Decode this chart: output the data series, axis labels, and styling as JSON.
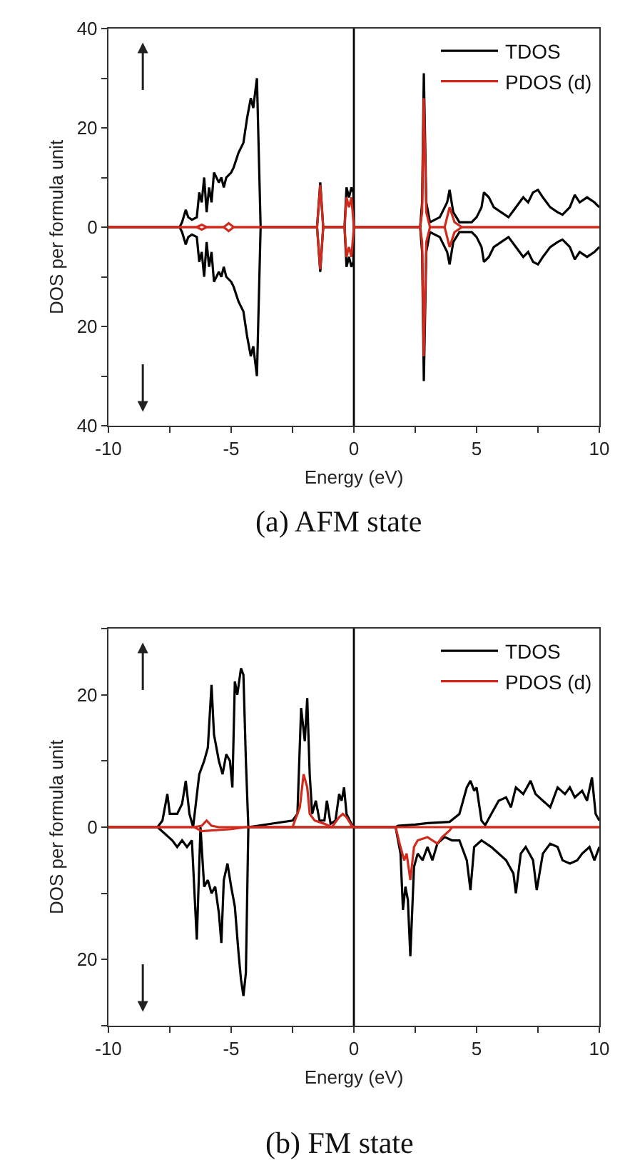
{
  "chart_data": [
    {
      "type": "line",
      "title": "(a) AFM state",
      "xlabel": "Energy (eV)",
      "ylabel": "DOS per formula unit",
      "xlim": [
        -10,
        10
      ],
      "xticks": [
        -10,
        {
          "value": -7.5,
          "label": null
        },
        -5,
        {
          "value": -2.5,
          "label": null
        },
        0,
        {
          "value": 2.5,
          "label": null
        },
        5,
        {
          "value": 7.5,
          "label": null
        },
        10
      ],
      "ylim": [
        -40,
        40
      ],
      "yticks": [
        {
          "value": -40,
          "label": "40"
        },
        {
          "value": -30,
          "label": null
        },
        {
          "value": -20,
          "label": "20"
        },
        {
          "value": -10,
          "label": null
        },
        0,
        {
          "value": 10,
          "label": null
        },
        20,
        {
          "value": 30,
          "label": null
        },
        40
      ],
      "legend": "top right",
      "ref_lines": [
        {
          "axis": "x",
          "value": 0,
          "color": "#000000"
        }
      ],
      "series": [
        {
          "name": "TDOS",
          "color": "#000000",
          "x": [
            -10,
            -7.1,
            -7.0,
            -6.85,
            -6.75,
            -6.6,
            -6.4,
            -6.3,
            -6.2,
            -6.1,
            -6.0,
            -5.9,
            -5.8,
            -5.7,
            -5.5,
            -5.4,
            -5.3,
            -5.2,
            -5.0,
            -4.9,
            -4.7,
            -4.5,
            -4.35,
            -4.2,
            -4.1,
            -3.95,
            -3.85,
            -3.8,
            -1.5,
            -1.37,
            -1.25,
            -0.38,
            -0.3,
            -0.2,
            -0.1,
            -0.02,
            0,
            2.7,
            2.78,
            2.85,
            2.95,
            3.1,
            3.5,
            3.8,
            3.9,
            4.05,
            4.3,
            4.8,
            5.0,
            5.2,
            5.3,
            5.5,
            5.7,
            6.0,
            6.3,
            6.6,
            6.9,
            7.1,
            7.3,
            7.5,
            7.7,
            8.0,
            8.3,
            8.5,
            8.8,
            9.0,
            9.2,
            9.5,
            9.8,
            10
          ],
          "values": [
            0,
            0,
            1,
            3.5,
            2,
            1.5,
            2,
            7,
            5,
            10,
            3,
            8,
            5,
            11,
            9,
            10,
            8,
            10,
            11,
            12,
            15,
            17,
            22,
            26,
            24,
            30,
            10,
            0,
            0,
            9,
            0,
            0,
            8,
            6,
            8,
            7,
            0,
            0,
            5,
            31,
            5,
            1,
            2,
            5,
            7.5,
            3,
            1,
            1,
            2,
            4,
            7,
            6,
            4,
            3,
            2,
            4,
            6,
            5,
            7,
            7.5,
            6,
            4,
            3,
            2.5,
            4,
            6.5,
            5,
            6,
            5,
            4
          ]
        },
        {
          "color": "#000000",
          "x": [
            -10,
            -7.1,
            -7.0,
            -6.85,
            -6.75,
            -6.6,
            -6.4,
            -6.3,
            -6.2,
            -6.1,
            -6.0,
            -5.9,
            -5.8,
            -5.7,
            -5.5,
            -5.4,
            -5.3,
            -5.2,
            -5.0,
            -4.9,
            -4.7,
            -4.5,
            -4.35,
            -4.2,
            -4.1,
            -3.95,
            -3.85,
            -3.8,
            -1.5,
            -1.37,
            -1.25,
            -0.38,
            -0.3,
            -0.2,
            -0.1,
            -0.02,
            0,
            2.7,
            2.78,
            2.85,
            2.95,
            3.1,
            3.5,
            3.8,
            3.9,
            4.05,
            4.3,
            4.8,
            5.0,
            5.2,
            5.3,
            5.5,
            5.7,
            6.0,
            6.3,
            6.6,
            6.9,
            7.1,
            7.3,
            7.5,
            7.7,
            8.0,
            8.3,
            8.5,
            8.8,
            9.0,
            9.2,
            9.5,
            9.8,
            10
          ],
          "values": [
            0,
            0,
            -1,
            -3.5,
            -2,
            -1.5,
            -2,
            -7,
            -5,
            -10,
            -3,
            -8,
            -5,
            -11,
            -9,
            -10,
            -8,
            -10,
            -11,
            -12,
            -15,
            -17,
            -22,
            -26,
            -24,
            -30,
            -10,
            0,
            0,
            -9,
            0,
            0,
            -8,
            -6,
            -8,
            -7,
            0,
            0,
            -5,
            -31,
            -5,
            -1,
            -2,
            -5,
            -7.5,
            -3,
            -1,
            -1,
            -2,
            -4,
            -7,
            -6,
            -4,
            -3,
            -2,
            -4,
            -6,
            -5,
            -7,
            -7.5,
            -6,
            -4,
            -3,
            -2.5,
            -4,
            -6.5,
            -5,
            -6,
            -5,
            -4
          ]
        },
        {
          "name": "PDOS (d)",
          "color": "#d02a1c",
          "x": [
            -10,
            -6.4,
            -6.2,
            -6.0,
            -5.3,
            -5.1,
            -4.9,
            -4.0,
            -1.5,
            -1.37,
            -1.25,
            -0.38,
            -0.3,
            -0.2,
            -0.1,
            0,
            2.7,
            2.78,
            2.85,
            2.95,
            3.1,
            3.7,
            3.9,
            4.1,
            4.4,
            10
          ],
          "values": [
            0,
            0,
            0.5,
            0,
            0,
            0.8,
            0,
            0,
            0,
            8.5,
            0,
            0,
            6,
            4,
            6,
            0,
            0,
            3,
            26,
            3,
            0,
            0,
            4,
            1,
            0,
            0
          ]
        },
        {
          "color": "#d02a1c",
          "x": [
            -10,
            -6.4,
            -6.2,
            -6.0,
            -5.3,
            -5.1,
            -4.9,
            -4.0,
            -1.5,
            -1.37,
            -1.25,
            -0.38,
            -0.3,
            -0.2,
            -0.1,
            0,
            2.7,
            2.78,
            2.85,
            2.95,
            3.1,
            3.7,
            3.9,
            4.1,
            4.4,
            10
          ],
          "values": [
            0,
            0,
            -0.5,
            0,
            0,
            -0.8,
            0,
            0,
            0,
            -8.5,
            0,
            0,
            -6,
            -4,
            -6,
            0,
            0,
            -3,
            -26,
            -3,
            0,
            0,
            -4,
            -1,
            0,
            0
          ]
        }
      ]
    },
    {
      "type": "line",
      "title": "(b) FM state",
      "xlabel": "Energy (eV)",
      "ylabel": "DOS per formula unit",
      "xlim": [
        -10,
        10
      ],
      "xticks": [
        -10,
        {
          "value": -7.5,
          "label": null
        },
        -5,
        {
          "value": -2.5,
          "label": null
        },
        0,
        {
          "value": 2.5,
          "label": null
        },
        5,
        {
          "value": 7.5,
          "label": null
        },
        10
      ],
      "ylim": [
        -30,
        30
      ],
      "yticks": [
        {
          "value": -30,
          "label": null
        },
        {
          "value": -20,
          "label": "20"
        },
        {
          "value": -10,
          "label": null
        },
        0,
        {
          "value": 10,
          "label": null
        },
        20,
        {
          "value": 30,
          "label": null
        }
      ],
      "legend": "top right",
      "ref_lines": [
        {
          "axis": "x",
          "value": 0,
          "color": "#000000"
        }
      ],
      "series": [
        {
          "name": "TDOS",
          "color": "#000000",
          "x": [
            -10,
            -8.0,
            -7.8,
            -7.6,
            -7.5,
            -7.2,
            -7.0,
            -6.85,
            -6.7,
            -6.55,
            -6.3,
            -6.1,
            -5.95,
            -5.8,
            -5.7,
            -5.5,
            -5.35,
            -5.2,
            -5.05,
            -4.95,
            -4.85,
            -4.75,
            -4.6,
            -4.5,
            -4.4,
            -4.3,
            -2.5,
            -2.3,
            -2.15,
            -2.0,
            -1.9,
            -1.8,
            -1.7,
            -1.55,
            -1.4,
            -1.2,
            -1.1,
            -0.95,
            -0.75,
            -0.6,
            -0.5,
            -0.4,
            -0.3,
            -0.1,
            0,
            1.7,
            1.8,
            2.5,
            3.0,
            3.9,
            4.3,
            4.6,
            4.75,
            4.9,
            5.0,
            5.2,
            5.35,
            5.6,
            5.9,
            6.2,
            6.4,
            6.6,
            6.9,
            7.2,
            7.4,
            7.7,
            8.0,
            8.3,
            8.6,
            8.8,
            9.0,
            9.3,
            9.5,
            9.7,
            9.85,
            10
          ],
          "values": [
            0,
            0,
            1,
            5,
            2,
            2,
            3.5,
            7,
            2,
            0,
            8,
            10,
            12,
            21.5,
            14,
            10,
            8,
            11,
            10,
            6,
            22,
            20,
            24,
            23,
            10,
            0,
            1,
            2,
            18,
            13,
            19.5,
            8,
            2,
            4,
            1,
            1,
            4,
            0.5,
            1,
            5,
            4,
            6,
            2,
            0.5,
            0,
            0,
            0.2,
            0.4,
            0.6,
            0.8,
            2,
            6,
            7,
            5.5,
            6,
            1,
            0.3,
            2,
            4,
            4.5,
            3,
            6,
            5,
            7,
            5,
            4,
            3,
            6,
            5,
            6,
            4.5,
            5.5,
            4,
            7.5,
            2,
            1
          ]
        },
        {
          "color": "#000000",
          "x": [
            -10,
            -8.0,
            -7.7,
            -7.4,
            -7.2,
            -7.0,
            -6.8,
            -6.6,
            -6.4,
            -6.25,
            -6.1,
            -5.95,
            -5.8,
            -5.65,
            -5.5,
            -5.4,
            -5.3,
            -5.15,
            -5.0,
            -4.85,
            -4.7,
            -4.6,
            -4.5,
            -4.4,
            -4.3,
            1.7,
            1.9,
            2.0,
            2.1,
            2.2,
            2.3,
            2.45,
            2.6,
            2.8,
            3.0,
            3.2,
            3.4,
            3.7,
            4.0,
            4.3,
            4.6,
            4.75,
            4.9,
            5.2,
            5.6,
            5.9,
            6.2,
            6.5,
            6.6,
            6.8,
            7.0,
            7.3,
            7.45,
            7.7,
            8.0,
            8.3,
            8.5,
            8.8,
            9.1,
            9.3,
            9.6,
            9.8,
            10
          ],
          "values": [
            0,
            0,
            -1,
            -2,
            -3,
            -2,
            -3,
            -2,
            -17,
            0,
            -9,
            -8,
            -10,
            -9,
            -13,
            -17.5,
            -8,
            -5.5,
            -9,
            -12,
            -19,
            -23,
            -25.5,
            -22,
            0,
            0,
            -4,
            -12.5,
            -9,
            -11,
            -19.5,
            -6,
            -4,
            -5,
            -3,
            -5,
            -2.5,
            -1.5,
            -2,
            -2,
            -5,
            -9.5,
            -3,
            -2,
            -3,
            -4,
            -5,
            -7,
            -10,
            -4,
            -3,
            -5,
            -9.5,
            -4,
            -2.5,
            -3,
            -5,
            -5.5,
            -5,
            -4,
            -3,
            -5,
            -3
          ]
        },
        {
          "name": "PDOS (d)",
          "color": "#d02a1c",
          "x": [
            -10,
            -6.5,
            -6.2,
            -6.0,
            -5.8,
            -5.5,
            -2.5,
            -2.2,
            -2.05,
            -1.9,
            -1.8,
            -1.6,
            -1.2,
            -0.9,
            -0.6,
            -0.45,
            -0.3,
            -0.1,
            0,
            10
          ],
          "values": [
            0,
            0,
            0.2,
            1,
            0.2,
            0,
            0,
            3,
            8,
            6,
            2,
            1,
            0.5,
            0,
            1.5,
            2,
            1.5,
            0.3,
            0,
            0
          ]
        },
        {
          "color": "#d02a1c",
          "x": [
            -10,
            -6.5,
            -6.2,
            -5.0,
            -4.4,
            1.7,
            1.9,
            2.05,
            2.15,
            2.3,
            2.45,
            2.6,
            3.0,
            3.4,
            3.6,
            3.9,
            4.0,
            10
          ],
          "values": [
            0,
            0,
            -0.6,
            -0.3,
            0,
            0,
            -3,
            -5,
            -4,
            -8,
            -3,
            -2,
            -1.5,
            -2.5,
            -1.5,
            -0.5,
            0,
            0
          ]
        }
      ]
    }
  ]
}
